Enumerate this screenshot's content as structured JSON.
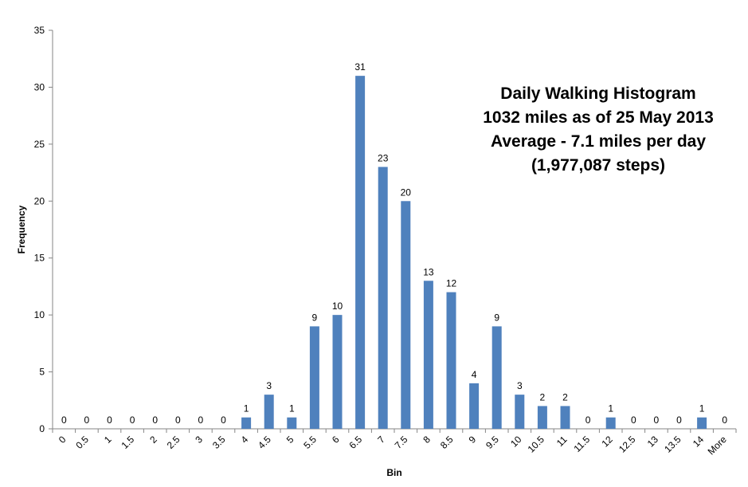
{
  "chart_data": {
    "type": "bar",
    "title": [
      "Daily Walking Histogram",
      "1032 miles as of 25 May 2013",
      "Average - 7.1 miles per day",
      "(1,977,087 steps)"
    ],
    "xlabel": "Bin",
    "ylabel": "Frequency",
    "ylim": [
      0,
      35
    ],
    "yticks": [
      "0",
      "5",
      "10",
      "15",
      "20",
      "25",
      "30",
      "35"
    ],
    "categories": [
      "0",
      "0.5",
      "1",
      "1.5",
      "2",
      "2.5",
      "3",
      "3.5",
      "4",
      "4.5",
      "5",
      "5.5",
      "6",
      "6.5",
      "7",
      "7.5",
      "8",
      "8.5",
      "9",
      "9.5",
      "10",
      "10.5",
      "11",
      "11.5",
      "12",
      "12.5",
      "13",
      "13.5",
      "14",
      "More"
    ],
    "values": [
      0,
      0,
      0,
      0,
      0,
      0,
      0,
      0,
      1,
      3,
      1,
      9,
      10,
      31,
      23,
      20,
      13,
      12,
      4,
      9,
      3,
      2,
      2,
      0,
      1,
      0,
      0,
      0,
      1,
      0
    ],
    "data_labels": [
      "0",
      "0",
      "0",
      "0",
      "0",
      "0",
      "0",
      "0",
      "1",
      "3",
      "1",
      "9",
      "10",
      "31",
      "23",
      "20",
      "13",
      "12",
      "4",
      "9",
      "3",
      "2",
      "2",
      "0",
      "1",
      "0",
      "0",
      "0",
      "1",
      "0"
    ],
    "bar_color": "#4F81BD",
    "grid": false,
    "legend": "none"
  }
}
